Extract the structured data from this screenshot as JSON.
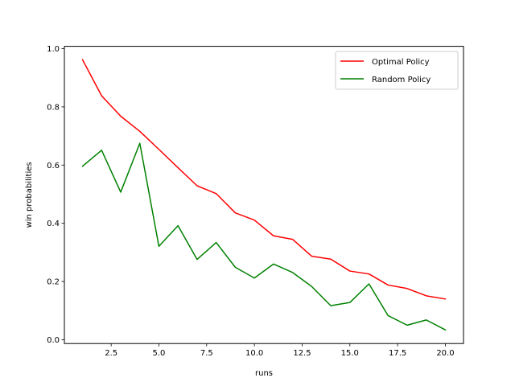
{
  "chart_data": {
    "type": "line",
    "title": "",
    "xlabel": "runs",
    "ylabel": "win probabilities",
    "xlim": [
      0.05,
      20.95
    ],
    "ylim": [
      -0.013,
      1.008
    ],
    "xticks": [
      2.5,
      5.0,
      7.5,
      10.0,
      12.5,
      15.0,
      17.5,
      20.0
    ],
    "xtick_labels": [
      "2.5",
      "5.0",
      "7.5",
      "10.0",
      "12.5",
      "15.0",
      "17.5",
      "20.0"
    ],
    "yticks": [
      0.0,
      0.2,
      0.4,
      0.6,
      0.8,
      1.0
    ],
    "ytick_labels": [
      "0.0",
      "0.2",
      "0.4",
      "0.6",
      "0.8",
      "1.0"
    ],
    "grid": false,
    "legend_position": "top-right",
    "x": [
      1,
      2,
      3,
      4,
      5,
      6,
      7,
      8,
      9,
      10,
      11,
      12,
      13,
      14,
      15,
      16,
      17,
      18,
      19,
      20
    ],
    "series": [
      {
        "name": "Optimal Policy",
        "color": "#ff0000",
        "values": [
          0.962,
          0.838,
          0.768,
          0.716,
          0.654,
          0.591,
          0.529,
          0.502,
          0.436,
          0.411,
          0.357,
          0.345,
          0.287,
          0.277,
          0.236,
          0.226,
          0.188,
          0.176,
          0.151,
          0.14
        ]
      },
      {
        "name": "Random Policy",
        "color": "#008000",
        "values": [
          0.596,
          0.651,
          0.507,
          0.675,
          0.321,
          0.392,
          0.276,
          0.334,
          0.249,
          0.212,
          0.26,
          0.231,
          0.183,
          0.117,
          0.128,
          0.192,
          0.083,
          0.05,
          0.068,
          0.034
        ]
      }
    ]
  }
}
